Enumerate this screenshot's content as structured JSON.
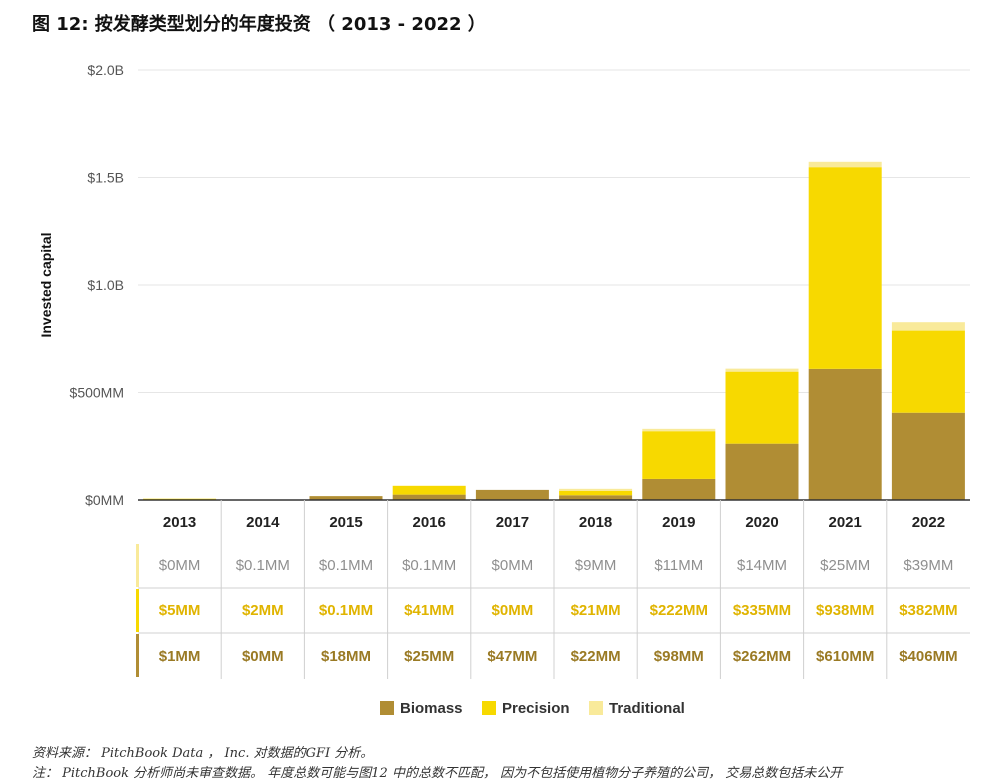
{
  "figure": {
    "title": "图 12: 按发酵类型划分的年度投资 （ 2013 - 2022 ）",
    "source": "资料来源： PitchBook Data ， Inc. 对数据的GFI 分析。",
    "note": "注： PitchBook 分析师尚未审查数据。 年度总数可能与图12 中的总数不匹配， 因为不包括使用植物分子养殖的公司， 交易总数包括未公开"
  },
  "colors": {
    "biomass": "#b08d34",
    "precision": "#f7d900",
    "traditional": "#f9ea9a",
    "grid": "#e6e6e6",
    "axis": "#333333",
    "table_line": "#d0d0d0"
  },
  "chart_data": {
    "type": "bar",
    "stacked": true,
    "title": "",
    "xlabel": "",
    "ylabel": "Invested capital",
    "ylim": [
      0,
      2000
    ],
    "y_unit": "MM",
    "y_ticks": [
      {
        "value": 0,
        "label": "$0MM"
      },
      {
        "value": 500,
        "label": "$500MM"
      },
      {
        "value": 1000,
        "label": "$1.0B"
      },
      {
        "value": 1500,
        "label": "$1.5B"
      },
      {
        "value": 2000,
        "label": "$2.0B"
      }
    ],
    "grid": true,
    "legend_position": "bottom-center",
    "categories": [
      "2013",
      "2014",
      "2015",
      "2016",
      "2017",
      "2018",
      "2019",
      "2020",
      "2021",
      "2022"
    ],
    "series": [
      {
        "name": "Biomass",
        "key": "biomass",
        "values": [
          1,
          0,
          18,
          25,
          47,
          22,
          98,
          262,
          610,
          406
        ],
        "labels": [
          "$1MM",
          "$0MM",
          "$18MM",
          "$25MM",
          "$47MM",
          "$22MM",
          "$98MM",
          "$262MM",
          "$610MM",
          "$406MM"
        ]
      },
      {
        "name": "Precision",
        "key": "precision",
        "values": [
          5,
          2,
          0.1,
          41,
          0,
          21,
          222,
          335,
          938,
          382
        ],
        "labels": [
          "$5MM",
          "$2MM",
          "$0.1MM",
          "$41MM",
          "$0MM",
          "$21MM",
          "$222MM",
          "$335MM",
          "$938MM",
          "$382MM"
        ]
      },
      {
        "name": "Traditional",
        "key": "traditional",
        "values": [
          0,
          0.1,
          0.1,
          0.1,
          0,
          9,
          11,
          14,
          25,
          39
        ],
        "labels": [
          "$0MM",
          "$0.1MM",
          "$0.1MM",
          "$0.1MM",
          "$0MM",
          "$9MM",
          "$11MM",
          "$14MM",
          "$25MM",
          "$39MM"
        ]
      }
    ],
    "table_row_order": [
      "traditional",
      "precision",
      "biomass"
    ],
    "legend_order": [
      "biomass",
      "precision",
      "traditional"
    ]
  }
}
